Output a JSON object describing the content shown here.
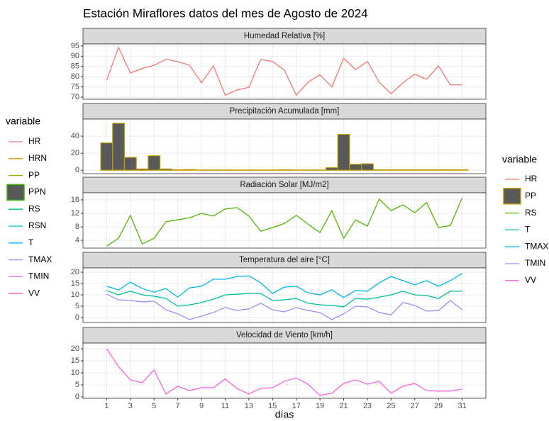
{
  "title": "Estación Miraflores datos del mes de Agosto de 2024",
  "chart_data": [
    {
      "type": "line",
      "title": "Humedad Relativa [%]",
      "x": [
        1,
        2,
        3,
        4,
        5,
        6,
        7,
        8,
        9,
        10,
        11,
        12,
        13,
        14,
        15,
        16,
        17,
        18,
        19,
        20,
        21,
        22,
        23,
        24,
        25,
        26,
        27,
        28,
        29,
        30,
        31
      ],
      "xlim": [
        -1,
        33
      ],
      "ylim": [
        69,
        96
      ],
      "yticks": [
        70,
        75,
        80,
        85,
        90,
        95
      ],
      "grid": true,
      "series": [
        {
          "name": "HR",
          "color": "#F8766D",
          "values": [
            78.3,
            94.3,
            81.8,
            84,
            85.6,
            88.5,
            87.4,
            85.6,
            77,
            85.3,
            71,
            73.5,
            74.8,
            88.4,
            87.4,
            83.2,
            71,
            77.3,
            81,
            75,
            89,
            83.5,
            87.4,
            77.3,
            71.7,
            77,
            81.2,
            78.7,
            85.3,
            76,
            76
          ]
        }
      ]
    },
    {
      "type": "bar",
      "title": "Precipitación Acumulada [mm]",
      "x": [
        1,
        2,
        3,
        4,
        5,
        6,
        7,
        8,
        9,
        10,
        11,
        12,
        13,
        14,
        15,
        16,
        17,
        18,
        19,
        20,
        21,
        22,
        23,
        24,
        25,
        26,
        27,
        28,
        29,
        30,
        31
      ],
      "xlim": [
        -1,
        33
      ],
      "ylim": [
        -4,
        60
      ],
      "yticks": [
        0,
        20,
        40
      ],
      "grid": true,
      "series": [
        {
          "name": "PP",
          "color": "#C49A00",
          "fill": "#595959",
          "values": [
            32,
            55,
            15,
            1.5,
            17,
            1.5,
            0.5,
            0.8,
            0.3,
            0.3,
            0.3,
            0.3,
            0.3,
            0.3,
            0.3,
            0.5,
            0.3,
            0.3,
            0.3,
            3,
            42,
            7,
            7.5,
            0.5,
            0.5,
            0.5,
            0.5,
            0.5,
            0.5,
            0.5,
            0.5
          ]
        }
      ]
    },
    {
      "type": "line",
      "title": "Radiación Solar [MJ/m2]",
      "x": [
        1,
        2,
        3,
        4,
        5,
        6,
        7,
        8,
        9,
        10,
        11,
        12,
        13,
        14,
        15,
        16,
        17,
        18,
        19,
        20,
        21,
        22,
        23,
        24,
        25,
        26,
        27,
        28,
        29,
        30,
        31
      ],
      "xlim": [
        -1,
        33
      ],
      "ylim": [
        1.7,
        18.1
      ],
      "yticks": [
        4,
        8,
        12,
        16
      ],
      "grid": true,
      "series": [
        {
          "name": "RS",
          "color": "#53B400",
          "values": [
            2.3,
            4.6,
            11.4,
            2.9,
            4.6,
            9.5,
            10.1,
            10.7,
            12,
            11.2,
            13.3,
            13.7,
            11.2,
            6.7,
            7.8,
            9,
            11.4,
            8.8,
            6.3,
            12.8,
            4.6,
            10.1,
            8.2,
            16.2,
            12.8,
            14.5,
            12.2,
            15.2,
            7.8,
            8.4,
            16.6
          ]
        }
      ]
    },
    {
      "type": "line",
      "title": "Temperatura del aire [°C]",
      "x": [
        1,
        2,
        3,
        4,
        5,
        6,
        7,
        8,
        9,
        10,
        11,
        12,
        13,
        14,
        15,
        16,
        17,
        18,
        19,
        20,
        21,
        22,
        23,
        24,
        25,
        26,
        27,
        28,
        29,
        30,
        31
      ],
      "xlim": [
        -1,
        33
      ],
      "ylim": [
        -2.2,
        21.9
      ],
      "yticks": [
        0,
        5,
        10,
        15,
        20
      ],
      "grid": true,
      "series": [
        {
          "name": "T",
          "color": "#00C094",
          "values": [
            11.9,
            10,
            11.6,
            10,
            9.4,
            8.4,
            5,
            5.6,
            6.6,
            8.1,
            10,
            10.3,
            10.6,
            10.6,
            7.5,
            7.8,
            8.4,
            6.3,
            5.6,
            5.3,
            4.7,
            8.4,
            8.1,
            9,
            10,
            11.6,
            10,
            9.7,
            8.4,
            11.6,
            11.6
          ]
        },
        {
          "name": "TMAX",
          "color": "#00B6EB",
          "values": [
            13.8,
            12.2,
            15.6,
            12.8,
            11.2,
            12.8,
            9,
            13.1,
            13.8,
            16.9,
            16.9,
            18.1,
            18.4,
            15.3,
            10.6,
            13.4,
            13.8,
            10.9,
            10,
            12.2,
            8.8,
            11.9,
            11.6,
            15.3,
            18.1,
            16.3,
            14.4,
            16.3,
            13.8,
            16.3,
            19.4
          ]
        },
        {
          "name": "TMIN",
          "color": "#A58AFF",
          "values": [
            10.3,
            7.8,
            7.5,
            6.9,
            7.2,
            3.4,
            1.6,
            -0.9,
            0.6,
            2.2,
            4.4,
            3.1,
            3.8,
            6.3,
            3.4,
            2.5,
            4.4,
            3.1,
            2.2,
            -0.9,
            1.6,
            5,
            4.7,
            2.2,
            1.2,
            6.6,
            5.3,
            2.8,
            3.1,
            7.5,
            3.4
          ]
        }
      ]
    },
    {
      "type": "line",
      "title": "Velocidad de Viento [km/h]",
      "x": [
        1,
        2,
        3,
        4,
        5,
        6,
        7,
        8,
        9,
        10,
        11,
        12,
        13,
        14,
        15,
        16,
        17,
        18,
        19,
        20,
        21,
        22,
        23,
        24,
        25,
        26,
        27,
        28,
        29,
        30,
        31
      ],
      "xlim": [
        -1,
        33
      ],
      "ylim": [
        -0.6,
        22.4
      ],
      "yticks": [
        0,
        5,
        10,
        15,
        20
      ],
      "grid": true,
      "xticks": [
        1,
        3,
        5,
        7,
        9,
        11,
        13,
        15,
        17,
        19,
        21,
        23,
        25,
        27,
        29,
        31
      ],
      "x_label": "días",
      "series": [
        {
          "name": "VV",
          "color": "#FB61D7",
          "values": [
            20,
            12.6,
            7.1,
            5.9,
            11.2,
            1.2,
            4.4,
            2.6,
            3.8,
            3.8,
            7.4,
            3.5,
            1.2,
            3.5,
            3.8,
            6.5,
            7.9,
            5.3,
            0.6,
            1.5,
            5.6,
            7.1,
            5.3,
            6.5,
            1.5,
            4.4,
            5.6,
            2.6,
            2.4,
            2.4,
            3.2
          ]
        }
      ]
    }
  ],
  "legends": [
    {
      "title": "variable",
      "items": [
        {
          "name": "HR",
          "color": "#F8766D"
        },
        {
          "name": "HRN",
          "color": "#D89000"
        },
        {
          "name": "PP",
          "color": "#A3A500"
        },
        {
          "name": "PPN",
          "color": "#39B600",
          "fill": "#595959"
        },
        {
          "name": "RS",
          "color": "#00BF7D"
        },
        {
          "name": "RSN",
          "color": "#00BFC4"
        },
        {
          "name": "T",
          "color": "#00B0F6"
        },
        {
          "name": "TMAX",
          "color": "#9590FF"
        },
        {
          "name": "TMIN",
          "color": "#E76BF3"
        },
        {
          "name": "VV",
          "color": "#FF62BC"
        }
      ]
    },
    {
      "title": "variable",
      "items": [
        {
          "name": "HR",
          "color": "#F8766D"
        },
        {
          "name": "PP",
          "color": "#C49A00",
          "fill": "#595959"
        },
        {
          "name": "RS",
          "color": "#53B400"
        },
        {
          "name": "T",
          "color": "#00C094"
        },
        {
          "name": "TMAX",
          "color": "#00B6EB"
        },
        {
          "name": "TMIN",
          "color": "#A58AFF"
        },
        {
          "name": "VV",
          "color": "#FB61D7"
        }
      ]
    }
  ]
}
